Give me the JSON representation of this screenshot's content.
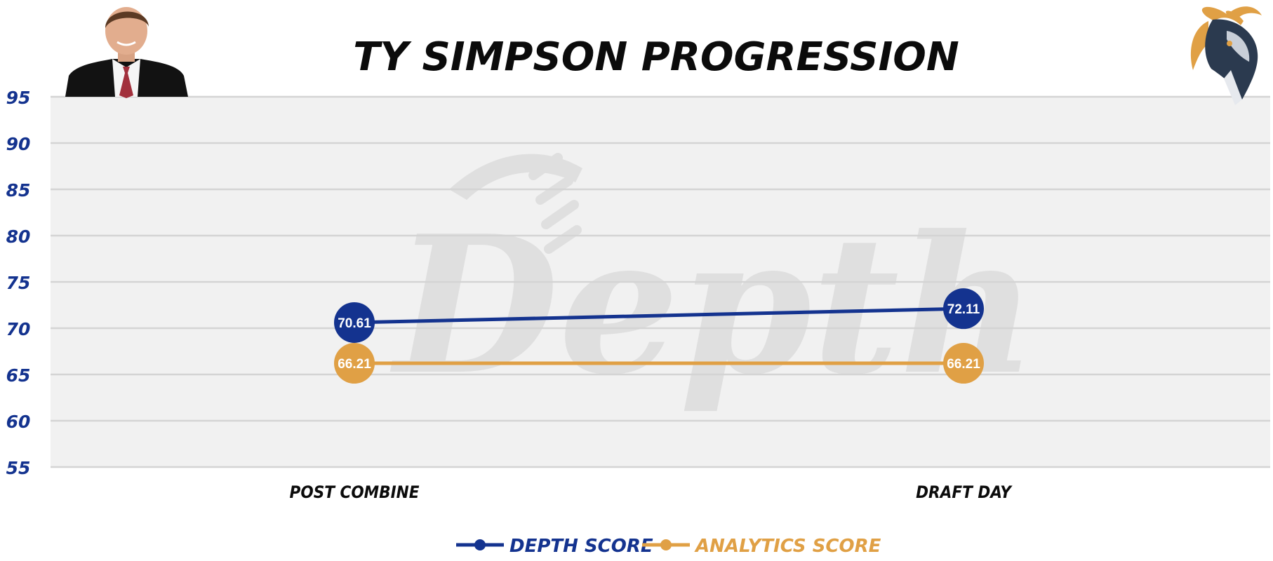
{
  "colors": {
    "depth": "#14338f",
    "analytics": "#e0a045",
    "plot_bg": "#f1f1f1",
    "grid": "#d4d4d4",
    "axis_text": "#14338f",
    "title": "#0b0b0b"
  },
  "icons": {
    "player_photo": "player-headshot",
    "team_logo": "goat-logo",
    "watermark": "depth-watermark"
  },
  "chart_data": {
    "type": "line",
    "title": "TY SIMPSON PROGRESSION",
    "categories": [
      "POST COMBINE",
      "DRAFT DAY"
    ],
    "ylim": [
      55,
      95
    ],
    "yticks": [
      95,
      90,
      85,
      80,
      75,
      70,
      65,
      60,
      55
    ],
    "grid": true,
    "legend_position": "bottom-center",
    "series": [
      {
        "name": "DEPTH SCORE",
        "values": [
          70.61,
          72.11
        ],
        "labels": [
          "70.61",
          "72.11"
        ]
      },
      {
        "name": "ANALYTICS SCORE",
        "values": [
          66.21,
          66.21
        ],
        "labels": [
          "66.21",
          "66.21"
        ]
      }
    ],
    "watermark": "Depth"
  }
}
